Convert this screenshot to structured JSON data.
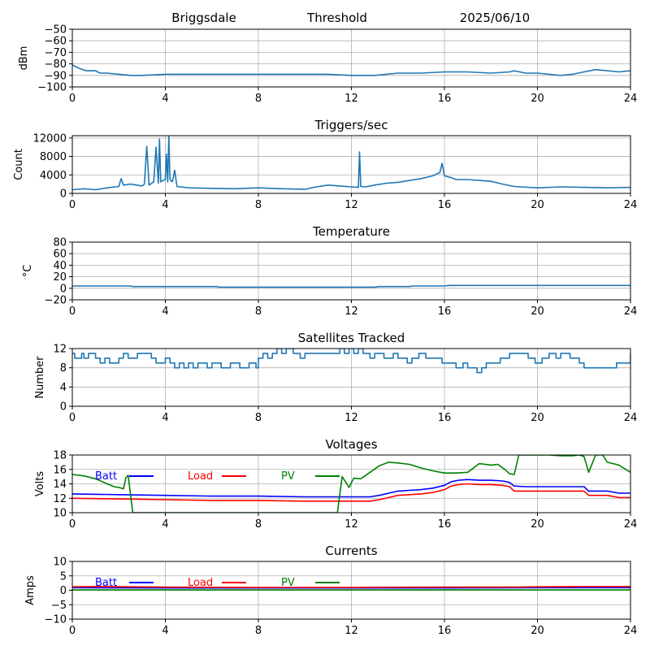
{
  "header": {
    "station": "Briggsdale",
    "label": "Threshold",
    "date": "2025/06/10"
  },
  "colors": {
    "series": "#1f77b4",
    "batt": "#0000ff",
    "load": "#ff0000",
    "pv": "#008000",
    "grid": "#b0b0b0",
    "axis": "#000000"
  },
  "chart_data": [
    {
      "id": "threshold",
      "type": "line",
      "title": "",
      "ylabel": "dBm",
      "xlim": [
        0,
        24
      ],
      "ylim": [
        -100,
        -50
      ],
      "xticks": [
        0,
        4,
        8,
        12,
        16,
        20,
        24
      ],
      "yticks": [
        -100,
        -90,
        -80,
        -70,
        -60,
        -50
      ],
      "ytick_labels": [
        "−100",
        "−90",
        "−80",
        "−70",
        "−60",
        "−50"
      ],
      "grid": true,
      "series": [
        {
          "color": "#1f77b4",
          "x": [
            0,
            0.3,
            0.6,
            1.0,
            1.2,
            1.5,
            2.0,
            2.5,
            3,
            4,
            5,
            6,
            7,
            8,
            9,
            10,
            11,
            12,
            13,
            14,
            15,
            16,
            17,
            18,
            18.8,
            19,
            19.5,
            20,
            21,
            21.5,
            22,
            22.5,
            23,
            23.5,
            24
          ],
          "y": [
            -81,
            -84,
            -86,
            -86,
            -88,
            -88,
            -89,
            -90,
            -90,
            -89,
            -89,
            -89,
            -89,
            -89,
            -89,
            -89,
            -89,
            -90,
            -90,
            -88,
            -88,
            -87,
            -87,
            -88,
            -87,
            -86,
            -88,
            -88,
            -90,
            -89,
            -87,
            -85,
            -86,
            -87,
            -86
          ]
        }
      ]
    },
    {
      "id": "triggers",
      "type": "line",
      "title": "Triggers/sec",
      "ylabel": "Count",
      "xlim": [
        0,
        24
      ],
      "ylim": [
        0,
        12500
      ],
      "xticks": [
        0,
        4,
        8,
        12,
        16,
        20,
        24
      ],
      "yticks": [
        0,
        4000,
        8000,
        12000
      ],
      "ytick_labels": [
        "0",
        "4000",
        "8000",
        "12000"
      ],
      "grid": true,
      "series": [
        {
          "color": "#1f77b4",
          "x": [
            0,
            0.5,
            1.0,
            1.5,
            2.0,
            2.1,
            2.2,
            2.5,
            3.0,
            3.1,
            3.2,
            3.3,
            3.5,
            3.6,
            3.7,
            3.75,
            3.8,
            3.9,
            4.0,
            4.05,
            4.1,
            4.15,
            4.2,
            4.3,
            4.4,
            4.5,
            5,
            6,
            7,
            8,
            9,
            10,
            10.5,
            11,
            11.5,
            12,
            12.3,
            12.35,
            12.4,
            12.6,
            13,
            13.5,
            14,
            14.5,
            15,
            15.5,
            15.8,
            15.9,
            16,
            16.3,
            16.5,
            17,
            17.5,
            18,
            18.5,
            19,
            20,
            21,
            22,
            23,
            24
          ],
          "y": [
            800,
            1000,
            800,
            1200,
            1500,
            3200,
            1800,
            2000,
            1600,
            2000,
            10200,
            1800,
            2500,
            10000,
            2200,
            11800,
            2500,
            2800,
            3000,
            8500,
            2500,
            12400,
            3000,
            2500,
            5000,
            1500,
            1200,
            1100,
            1000,
            1200,
            1000,
            900,
            1400,
            1800,
            1600,
            1400,
            1300,
            9000,
            1500,
            1400,
            1800,
            2200,
            2400,
            2800,
            3200,
            3800,
            4500,
            6500,
            3800,
            3400,
            3000,
            3000,
            2800,
            2600,
            2000,
            1500,
            1200,
            1400,
            1300,
            1200,
            1300
          ]
        }
      ]
    },
    {
      "id": "temperature",
      "type": "line",
      "title": "Temperature",
      "ylabel": "°C",
      "xlim": [
        0,
        24
      ],
      "ylim": [
        -20,
        80
      ],
      "xticks": [
        0,
        4,
        8,
        12,
        16,
        20,
        24
      ],
      "yticks": [
        -20,
        0,
        20,
        40,
        60,
        80
      ],
      "ytick_labels": [
        "−20",
        "0",
        "20",
        "40",
        "60",
        "80"
      ],
      "grid": true,
      "series": [
        {
          "color": "#1f77b4",
          "x": [
            0,
            2.5,
            2.6,
            6.2,
            6.3,
            13,
            13.2,
            14.5,
            14.6,
            16,
            16.2,
            24
          ],
          "y": [
            4,
            4,
            3,
            3,
            2,
            2,
            3,
            3,
            4,
            4,
            5,
            5
          ]
        }
      ]
    },
    {
      "id": "satellites",
      "type": "line",
      "title": "Satellites Tracked",
      "ylabel": "Number",
      "xlim": [
        0,
        24
      ],
      "ylim": [
        0,
        12
      ],
      "xticks": [
        0,
        4,
        8,
        12,
        16,
        20,
        24
      ],
      "yticks": [
        0,
        4,
        8,
        12
      ],
      "ytick_labels": [
        "0",
        "4",
        "8",
        "12"
      ],
      "grid": true,
      "step": true,
      "series": [
        {
          "color": "#1f77b4",
          "x": [
            0,
            0.1,
            0.3,
            0.4,
            0.5,
            0.7,
            1.0,
            1.2,
            1.4,
            1.6,
            2.0,
            2.2,
            2.4,
            2.6,
            2.8,
            3.0,
            3.4,
            3.6,
            3.8,
            4.0,
            4.2,
            4.4,
            4.6,
            4.8,
            5.0,
            5.2,
            5.4,
            5.8,
            6.0,
            6.4,
            6.8,
            7.2,
            7.6,
            7.9,
            8.0,
            8.2,
            8.4,
            8.6,
            8.8,
            9.0,
            9.2,
            9.5,
            9.8,
            10.0,
            10.5,
            11.0,
            11.5,
            11.7,
            11.9,
            12.1,
            12.3,
            12.5,
            12.8,
            13.0,
            13.4,
            13.8,
            14.0,
            14.4,
            14.6,
            14.9,
            15.2,
            15.6,
            15.9,
            16.1,
            16.5,
            16.8,
            17.0,
            17.2,
            17.4,
            17.6,
            17.8,
            18.0,
            18.4,
            18.8,
            19.2,
            19.6,
            19.9,
            20.2,
            20.5,
            20.8,
            21.0,
            21.4,
            21.8,
            22.0,
            22.4,
            23.0,
            23.4,
            23.8,
            24
          ],
          "y": [
            11,
            10,
            10,
            11,
            10,
            11,
            10,
            9,
            10,
            9,
            10,
            11,
            10,
            10,
            11,
            11,
            10,
            9,
            9,
            10,
            9,
            8,
            9,
            8,
            9,
            8,
            9,
            8,
            9,
            8,
            9,
            8,
            9,
            8,
            10,
            11,
            10,
            11,
            12,
            11,
            12,
            11,
            10,
            11,
            11,
            11,
            12,
            11,
            12,
            11,
            12,
            11,
            10,
            11,
            10,
            11,
            10,
            9,
            10,
            11,
            10,
            10,
            9,
            9,
            8,
            9,
            8,
            8,
            7,
            8,
            9,
            9,
            10,
            11,
            11,
            10,
            9,
            10,
            11,
            10,
            11,
            10,
            9,
            8,
            8,
            8,
            9,
            9,
            11
          ]
        }
      ]
    },
    {
      "id": "voltages",
      "type": "line",
      "title": "Voltages",
      "ylabel": "Volts",
      "xlim": [
        0,
        24
      ],
      "ylim": [
        10,
        18
      ],
      "xticks": [
        0,
        4,
        8,
        12,
        16,
        20,
        24
      ],
      "yticks": [
        10,
        12,
        14,
        16,
        18
      ],
      "ytick_labels": [
        "10",
        "12",
        "14",
        "16",
        "18"
      ],
      "grid": true,
      "legend": [
        "Batt",
        "Load",
        "PV"
      ],
      "series": [
        {
          "name": "Batt",
          "color": "#0000ff",
          "x": [
            0,
            2,
            4,
            6,
            8,
            10,
            12,
            12.8,
            13.2,
            13.6,
            14,
            14.5,
            15,
            15.5,
            16,
            16.3,
            16.6,
            17,
            17.5,
            18,
            18.5,
            18.8,
            19,
            19.5,
            20,
            21,
            22,
            22.2,
            23,
            23.5,
            24
          ],
          "y": [
            12.6,
            12.5,
            12.4,
            12.3,
            12.3,
            12.2,
            12.2,
            12.2,
            12.4,
            12.7,
            13.0,
            13.1,
            13.2,
            13.4,
            13.8,
            14.3,
            14.5,
            14.6,
            14.5,
            14.5,
            14.4,
            14.2,
            13.7,
            13.6,
            13.6,
            13.6,
            13.6,
            13.0,
            13.0,
            12.7,
            12.7
          ]
        },
        {
          "name": "Load",
          "color": "#ff0000",
          "x": [
            0,
            2,
            4,
            6,
            8,
            10,
            12,
            12.8,
            13.2,
            13.6,
            14,
            14.5,
            15,
            15.5,
            16,
            16.3,
            16.6,
            17,
            17.5,
            18,
            18.5,
            18.8,
            19,
            19.5,
            20,
            21,
            22,
            22.2,
            23,
            23.5,
            24
          ],
          "y": [
            12.0,
            11.9,
            11.8,
            11.7,
            11.7,
            11.6,
            11.6,
            11.6,
            11.8,
            12.1,
            12.4,
            12.5,
            12.6,
            12.8,
            13.2,
            13.7,
            13.9,
            14.0,
            13.9,
            13.9,
            13.8,
            13.6,
            13.0,
            13.0,
            13.0,
            13.0,
            13.0,
            12.4,
            12.4,
            12.1,
            12.1
          ]
        },
        {
          "name": "PV",
          "color": "#008000",
          "x": [
            0,
            0.5,
            1.0,
            1.5,
            1.8,
            2.0,
            2.2,
            2.3,
            2.4,
            2.6,
            11.4,
            11.6,
            11.9,
            12.1,
            12.4,
            12.8,
            13.2,
            13.6,
            14,
            14.5,
            15,
            15.5,
            16,
            16.5,
            17,
            17.5,
            18,
            18.3,
            18.6,
            18.8,
            19.0,
            19.2,
            19.6,
            20,
            20.5,
            21,
            21.5,
            21.8,
            22,
            22.2,
            22.5,
            22.8,
            23,
            23.5,
            24
          ],
          "y": [
            15.3,
            15.1,
            14.7,
            14.0,
            13.6,
            13.5,
            13.3,
            14.8,
            15.2,
            10.0,
            10.0,
            15.0,
            13.5,
            14.8,
            14.7,
            15.6,
            16.5,
            17.0,
            16.9,
            16.7,
            16.2,
            15.8,
            15.5,
            15.5,
            15.6,
            16.8,
            16.6,
            16.7,
            16.0,
            15.4,
            15.3,
            18.0,
            18.0,
            18.0,
            18.0,
            17.9,
            17.9,
            18.0,
            17.8,
            15.6,
            18.0,
            18.0,
            17.0,
            16.6,
            15.6
          ]
        }
      ]
    },
    {
      "id": "currents",
      "type": "line",
      "title": "Currents",
      "ylabel": "Amps",
      "xlim": [
        0,
        24
      ],
      "ylim": [
        -10,
        10
      ],
      "xticks": [
        0,
        4,
        8,
        12,
        16,
        20,
        24
      ],
      "yticks": [
        -10,
        -5,
        0,
        5,
        10
      ],
      "ytick_labels": [
        "−10",
        "−5",
        "0",
        "5",
        "10"
      ],
      "grid": true,
      "legend": [
        "Batt",
        "Load",
        "PV"
      ],
      "series": [
        {
          "name": "Batt",
          "color": "#0000ff",
          "x": [
            0,
            4,
            8,
            12,
            16,
            20,
            24
          ],
          "y": [
            0.9,
            0.8,
            0.8,
            0.8,
            0.8,
            0.9,
            0.9
          ]
        },
        {
          "name": "Load",
          "color": "#ff0000",
          "x": [
            0,
            1,
            4,
            8,
            12,
            16,
            19,
            20,
            22,
            24
          ],
          "y": [
            1.2,
            1.3,
            1.1,
            1.0,
            1.0,
            1.1,
            1.1,
            1.2,
            1.3,
            1.3
          ]
        },
        {
          "name": "PV",
          "color": "#008000",
          "x": [
            0,
            4,
            8,
            12,
            16,
            20,
            24
          ],
          "y": [
            0.1,
            0.1,
            0.1,
            0.1,
            0.1,
            0.1,
            0.1
          ]
        }
      ]
    }
  ]
}
